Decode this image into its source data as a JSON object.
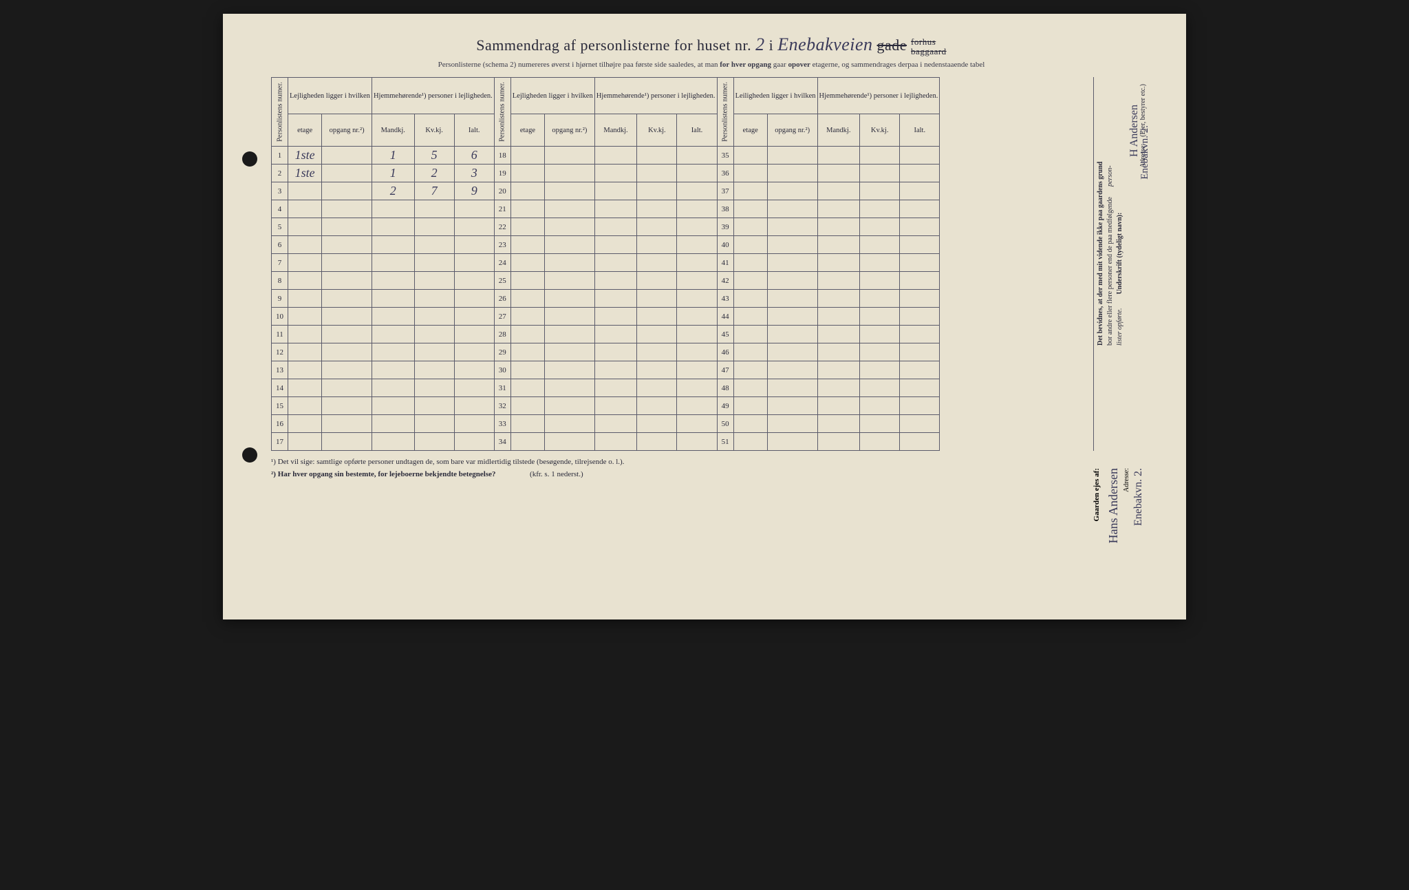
{
  "title": {
    "prefix": "Sammendrag af personlisterne for huset nr.",
    "house_nr": "2",
    "i": "i",
    "street": "Enebakveien",
    "gade": "gade",
    "forhus": "forhus",
    "baggaard": "baggaard"
  },
  "subtitle": {
    "text_a": "Personlisterne (schema 2) numereres øverst i hjørnet tilhøjre paa første side saaledes, at man ",
    "bold_a": "for hver opgang",
    "text_b": " gaar ",
    "bold_b": "opover",
    "text_c": " etagerne, og sammendrages derpaa i nedenstaaende tabel"
  },
  "headers": {
    "personlistens_numer": "Personlistens numer.",
    "lejligheden": "Lejligheden ligger i hvilken",
    "hjemmehorende": "Hjemmehørende¹) personer i lejligheden.",
    "leiligheden": "Leiligheden ligger i hvilken",
    "etage": "etage",
    "opgang": "opgang nr.²)",
    "mandkj": "Mandkj.",
    "kvkj": "Kv.kj.",
    "ialt": "Ialt."
  },
  "rows_block1": [
    {
      "n": "1",
      "etage": "1ste",
      "opgang": "",
      "m": "1",
      "k": "5",
      "i": "6"
    },
    {
      "n": "2",
      "etage": "1ste",
      "opgang": "",
      "m": "1",
      "k": "2",
      "i": "3"
    },
    {
      "n": "3",
      "etage": "",
      "opgang": "",
      "m": "2",
      "k": "7",
      "i": "9"
    },
    {
      "n": "4",
      "etage": "",
      "opgang": "",
      "m": "",
      "k": "",
      "i": ""
    },
    {
      "n": "5",
      "etage": "",
      "opgang": "",
      "m": "",
      "k": "",
      "i": ""
    },
    {
      "n": "6",
      "etage": "",
      "opgang": "",
      "m": "",
      "k": "",
      "i": ""
    },
    {
      "n": "7",
      "etage": "",
      "opgang": "",
      "m": "",
      "k": "",
      "i": ""
    },
    {
      "n": "8",
      "etage": "",
      "opgang": "",
      "m": "",
      "k": "",
      "i": ""
    },
    {
      "n": "9",
      "etage": "",
      "opgang": "",
      "m": "",
      "k": "",
      "i": ""
    },
    {
      "n": "10",
      "etage": "",
      "opgang": "",
      "m": "",
      "k": "",
      "i": ""
    },
    {
      "n": "11",
      "etage": "",
      "opgang": "",
      "m": "",
      "k": "",
      "i": ""
    },
    {
      "n": "12",
      "etage": "",
      "opgang": "",
      "m": "",
      "k": "",
      "i": ""
    },
    {
      "n": "13",
      "etage": "",
      "opgang": "",
      "m": "",
      "k": "",
      "i": ""
    },
    {
      "n": "14",
      "etage": "",
      "opgang": "",
      "m": "",
      "k": "",
      "i": ""
    },
    {
      "n": "15",
      "etage": "",
      "opgang": "",
      "m": "",
      "k": "",
      "i": ""
    },
    {
      "n": "16",
      "etage": "",
      "opgang": "",
      "m": "",
      "k": "",
      "i": ""
    },
    {
      "n": "17",
      "etage": "",
      "opgang": "",
      "m": "",
      "k": "",
      "i": ""
    }
  ],
  "rows_block2_nums": [
    "18",
    "19",
    "20",
    "21",
    "22",
    "23",
    "24",
    "25",
    "26",
    "27",
    "28",
    "29",
    "30",
    "31",
    "32",
    "33",
    "34"
  ],
  "rows_block3_nums": [
    "35",
    "36",
    "37",
    "38",
    "39",
    "40",
    "41",
    "42",
    "43",
    "44",
    "45",
    "46",
    "47",
    "48",
    "49",
    "50",
    "51"
  ],
  "footnotes": {
    "f1": "¹)   Det vil sige: samtlige opførte personer undtagen de, som bare var midlertidig tilstede (besøgende, tilrejsende o. l.).",
    "f2": "²)   Har hver opgang sin bestemte, for lejeboerne bekjendte betegnelse?",
    "f2_ref": "(kfr. s. 1 nederst.)"
  },
  "sidebar": {
    "cert1": "Det bevidnes, at der med mit vidende ikke paa gaardens grund",
    "cert2": "bor andre eller flere personer end de paa medfølgende",
    "cert3": "lister opførte.",
    "person_suffix": "person-",
    "underskrift_label": "Underskrift (tydeligt navn):",
    "signature": "H Andersen",
    "adresse_label": "Adresse:",
    "adresse": "Enebakvn. 2.",
    "ejer_note": "(Ejer, bestyrer etc.)"
  },
  "owner": {
    "label": "Gaarden ejes af:",
    "name": "Hans Andersen",
    "adresse_label": "Adresse:",
    "adresse": "Enebakvn. 2."
  },
  "style": {
    "paper_bg": "#e8e2d0",
    "ink": "#2a2a3a",
    "handwriting": "#3a3a5a",
    "border": "#5a5a6a",
    "title_fontsize": 22,
    "body_fontsize": 11,
    "hw_fontsize": 18
  }
}
